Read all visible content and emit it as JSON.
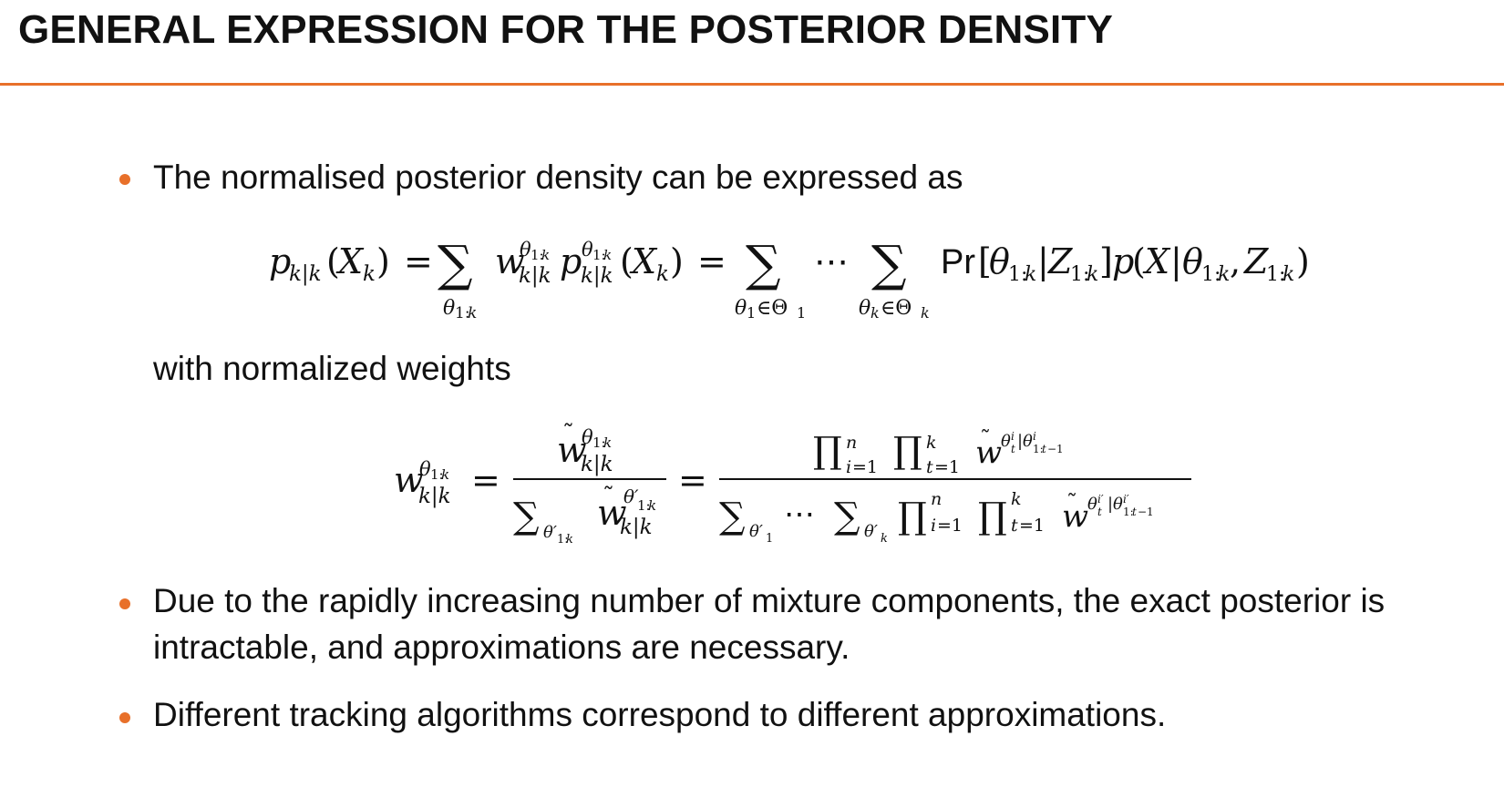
{
  "slide": {
    "title": "GENERAL EXPRESSION FOR THE POSTERIOR DENSITY",
    "accent_color": "#e8702a",
    "bullets": [
      {
        "lines": [
          "The normalised posterior density can be expressed as"
        ]
      },
      {
        "lines": [
          "Due to the rapidly increasing number of mixture components, the exact posterior is",
          "intractable, and approximations are necessary."
        ]
      },
      {
        "lines": [
          "Different tracking algorithms correspond to different approximations."
        ]
      }
    ],
    "connector_text": "with normalized weights",
    "equation_1": {
      "lhs": "p_{k|k}(X_k)",
      "middle": "= Σ_{θ_{1:k}} w_{k|k}^{θ_{1:k}} p_{k|k}^{θ_{1:k}}(X_k)",
      "rhs": "= Σ_{θ_1∈Θ_1} … Σ_{θ_k∈Θ_k} Pr[θ_{1:k}|Z_{1:k}] p(X|θ_{1:k}, Z_{1:k})"
    },
    "equation_2": {
      "lhs": "w_{k|k}^{θ_{1:k}}",
      "first_fraction": "w̃_{k|k}^{θ_{1:k}} / Σ_{θ'_{1:k}} w̃_{k|k}^{θ'_{1:k}}",
      "second_fraction": "∏_{i=1}^{n} ∏_{t=1}^{k} w̃^{θ_t^i|θ_{1:t−1}^i} / Σ_{θ'_1} … Σ_{θ'_k} ∏_{i=1}^{n} ∏_{t=1}^{k} w̃^{θ_t^{i'}|θ_{1:t−1}^{i'}}"
    }
  }
}
